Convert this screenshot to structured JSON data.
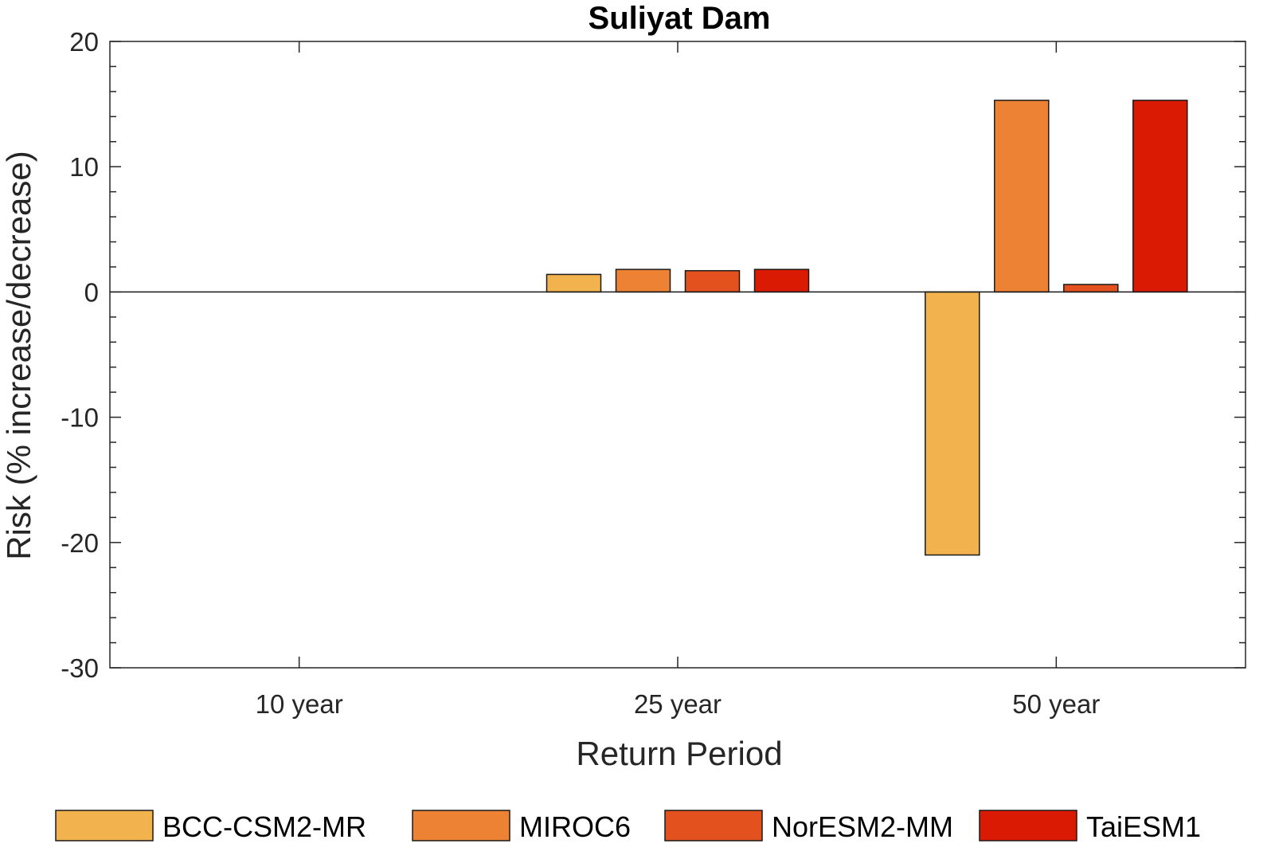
{
  "chart_data": {
    "type": "bar",
    "title": "Suliyat Dam",
    "xlabel": "Return Period",
    "ylabel": "Risk (% increase/decrease)",
    "categories": [
      "10 year",
      "25 year",
      "50 year"
    ],
    "ylim": [
      -30,
      20
    ],
    "yticks": [
      20,
      10,
      0,
      -10,
      -20,
      -30
    ],
    "ytick_labels": [
      "20",
      "10",
      "0",
      "-10",
      "-20",
      "-30"
    ],
    "grid": false,
    "legend_position": "bottom",
    "series": [
      {
        "name": "BCC-CSM2-MR",
        "color": "#F2B24D",
        "values": [
          0,
          1.4,
          -21.0
        ]
      },
      {
        "name": "MIROC6",
        "color": "#ED8235",
        "values": [
          0,
          1.8,
          15.3
        ]
      },
      {
        "name": "NorESM2-MM",
        "color": "#E3521E",
        "values": [
          0,
          1.7,
          0.6
        ]
      },
      {
        "name": "TaiESM1",
        "color": "#DB1A03",
        "values": [
          0,
          1.8,
          15.3
        ]
      }
    ]
  }
}
